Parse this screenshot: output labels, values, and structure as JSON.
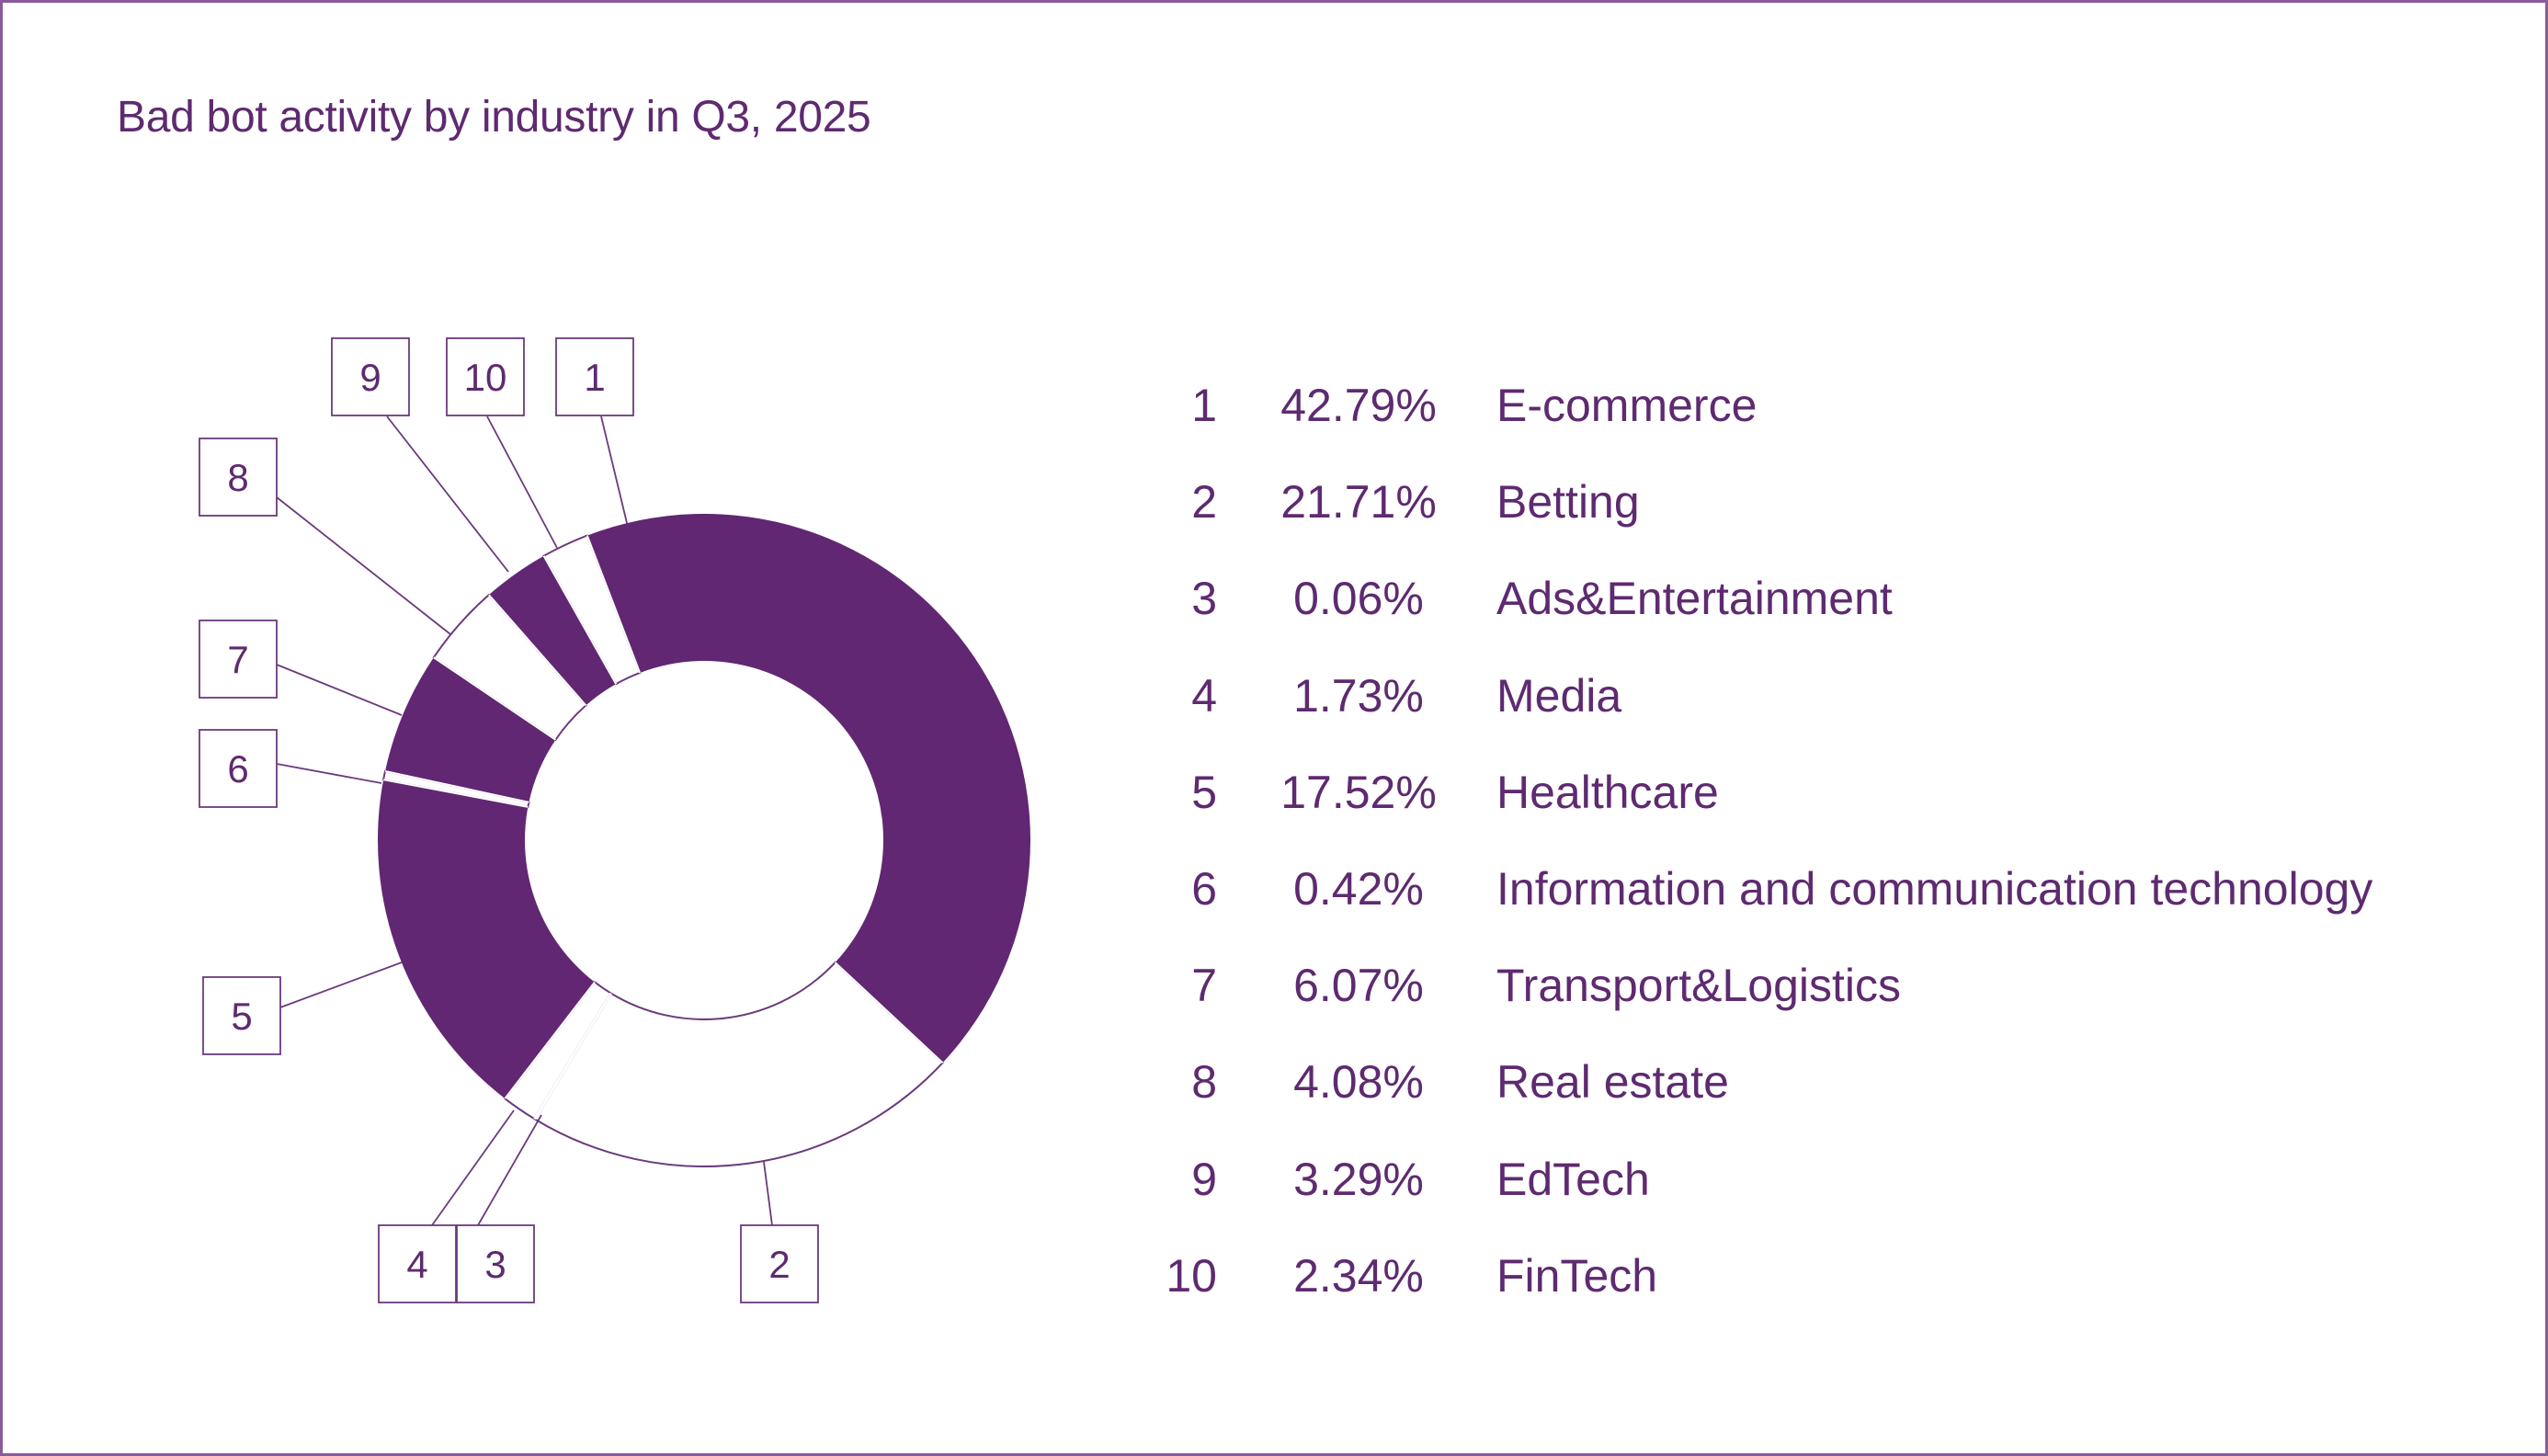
{
  "title": "Bad bot activity by industry in Q3, 2025",
  "colors": {
    "accent": "#612772",
    "text": "#5e2a70",
    "outline": "#6b3a7d",
    "frame": "#8a5a9b",
    "background": "#ffffff"
  },
  "chart_data": {
    "type": "pie",
    "variant": "donut",
    "title": "Bad bot activity by industry in Q3, 2025",
    "value_unit": "%",
    "categories": [
      "E-commerce",
      "Betting",
      "Ads&Entertainment",
      "Media",
      "Healthcare",
      "Information and communication technology",
      "Transport&Logistics",
      "Real estate",
      "EdTech",
      "FinTech"
    ],
    "values": [
      42.79,
      21.71,
      0.06,
      1.73,
      17.52,
      0.42,
      6.07,
      4.08,
      3.29,
      2.34
    ],
    "slice_labels": [
      "1",
      "2",
      "3",
      "4",
      "5",
      "6",
      "7",
      "8",
      "9",
      "10"
    ],
    "slice_fill": [
      "filled",
      "outline",
      "filled",
      "outline",
      "filled",
      "outline",
      "filled",
      "outline",
      "filled",
      "outline"
    ],
    "start_angle_deg": -21,
    "direction": "clockwise",
    "legend_position": "right"
  },
  "legend": {
    "rows": [
      {
        "num": "1",
        "pct": "42.79%",
        "name": "E-commerce"
      },
      {
        "num": "2",
        "pct": "21.71%",
        "name": "Betting"
      },
      {
        "num": "3",
        "pct": "0.06%",
        "name": "Ads&Entertainment"
      },
      {
        "num": "4",
        "pct": "1.73%",
        "name": "Media"
      },
      {
        "num": "5",
        "pct": "17.52%",
        "name": "Healthcare"
      },
      {
        "num": "6",
        "pct": "0.42%",
        "name": "Information and communication technology"
      },
      {
        "num": "7",
        "pct": "6.07%",
        "name": "Transport&Logistics"
      },
      {
        "num": "8",
        "pct": "4.08%",
        "name": "Real estate"
      },
      {
        "num": "9",
        "pct": "3.29%",
        "name": "EdTech"
      },
      {
        "num": "10",
        "pct": "2.34%",
        "name": "FinTech"
      }
    ]
  }
}
